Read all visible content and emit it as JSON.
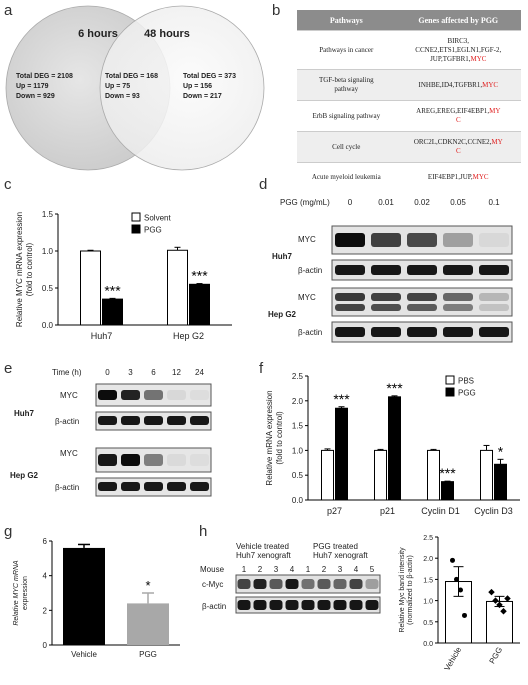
{
  "panel_labels": [
    "a",
    "b",
    "c",
    "d",
    "e",
    "f",
    "g",
    "h"
  ],
  "venn": {
    "left_title": "6 hours",
    "right_title": "48 hours",
    "left_stats": [
      "Total DEG = 2108",
      "Up = 1179",
      "Down = 929"
    ],
    "mid_stats": [
      "Total DEG = 168",
      "Up = 75",
      "Down = 93"
    ],
    "right_stats": [
      "Total DEG = 373",
      "Up = 156",
      "Down = 217"
    ]
  },
  "table": {
    "headers": [
      "Pathways",
      "Genes affected by PGG"
    ],
    "rows": [
      {
        "pathway": "Pathways in cancer",
        "genes_l1": "BIRC3,",
        "genes_l2": "CCNE2,ETS1,EGLN1,FGF-2,",
        "genes_l3": "JUP,TGFBR1,",
        "myc": "MYC"
      },
      {
        "pathway_l1": "TGF-beta signaling",
        "pathway_l2": "pathway",
        "genes": "INHBE,ID4,TGFBR1,",
        "myc": "MYC"
      },
      {
        "pathway": "ErbB signaling pathway",
        "genes": "AREG,EREG,EIF4EBP1,",
        "myc": "MY",
        "myc2": "C"
      },
      {
        "pathway": "Cell cycle",
        "genes": "ORC2L,CDKN2C,CCNE2,",
        "myc": "MY",
        "myc2": "C"
      },
      {
        "pathway": "Acute myeloid leukemia",
        "genes": "EIF4EBP1,JUP,",
        "myc": "MYC"
      }
    ]
  },
  "chart_data": [
    {
      "panel": "c",
      "type": "bar",
      "ylabel": "Relative MYC mRNA expression (fold to control)",
      "ylabel_l1": "Relative MYC mRNA expression",
      "ylabel_l2": "(fold to control)",
      "categories": [
        "Huh7",
        "Hep G2"
      ],
      "series": [
        {
          "name": "Solvent",
          "values": [
            1.0,
            1.01
          ],
          "errors": [
            0.01,
            0.04
          ],
          "color": "#ffffff"
        },
        {
          "name": "PGG",
          "values": [
            0.35,
            0.55
          ],
          "errors": [
            0.01,
            0.01
          ],
          "color": "#000000"
        }
      ],
      "significance": [
        "***",
        "***"
      ],
      "ylim": [
        0.0,
        1.5
      ],
      "yticks": [
        "0.0",
        "0.5",
        "1.0",
        "1.5"
      ],
      "legend": "top-right"
    },
    {
      "panel": "f",
      "type": "bar",
      "ylabel": "Relative mRNA expression (fold to control)",
      "ylabel_l1": "Relative mRNA expression",
      "ylabel_l2": "(fold to control)",
      "categories": [
        "p27",
        "p21",
        "Cyclin D1",
        "Cyclin D3"
      ],
      "series": [
        {
          "name": "PBS",
          "values": [
            1.0,
            1.0,
            1.0,
            1.0
          ],
          "errors": [
            0.03,
            0.02,
            0.02,
            0.1
          ],
          "color": "#ffffff"
        },
        {
          "name": "PGG",
          "values": [
            1.85,
            2.08,
            0.37,
            0.72
          ],
          "errors": [
            0.03,
            0.02,
            0.01,
            0.1
          ],
          "color": "#000000"
        }
      ],
      "significance": [
        "***",
        "***",
        "***",
        "*"
      ],
      "ylim": [
        0.0,
        2.5
      ],
      "yticks": [
        "0.0",
        "0.5",
        "1.0",
        "1.5",
        "2.0",
        "2.5"
      ],
      "legend": "top-right"
    },
    {
      "panel": "g",
      "type": "bar",
      "ylabel": "Relative MYC mRNA expression",
      "ylabel_l1": "Relative MYC mRNA",
      "ylabel_l2": "expression",
      "categories": [
        "Vehicle",
        "PGG"
      ],
      "values": [
        5.6,
        2.4
      ],
      "errors": [
        0.2,
        0.6
      ],
      "colors": [
        "#000000",
        "#a8a8a8"
      ],
      "significance": [
        "",
        "*"
      ],
      "ylim": [
        0,
        6
      ],
      "yticks": [
        "0",
        "2",
        "4",
        "6"
      ]
    },
    {
      "panel": "h",
      "type": "scatter",
      "ylabel": "Relative Myc band intensity (normalized to β-actin)",
      "ylabel_l1": "Relative Myc band intensity",
      "ylabel_l2": "(normalized to β-actin)",
      "categories": [
        "Vehicle",
        "PGG"
      ],
      "means": [
        1.45,
        0.98
      ],
      "errors": [
        0.35,
        0.12
      ],
      "points": [
        [
          1.95,
          1.5,
          1.25,
          0.65
        ],
        [
          1.2,
          1.0,
          0.9,
          0.75,
          1.05
        ]
      ],
      "ylim": [
        0.0,
        2.5
      ],
      "yticks": [
        "0.0",
        "0.5",
        "1.0",
        "1.5",
        "2.0",
        "2.5"
      ]
    }
  ],
  "blot_d": {
    "header_label": "PGG (mg/mL)",
    "doses": [
      "0",
      "0.01",
      "0.02",
      "0.05",
      "0.1"
    ],
    "cell_lines": [
      "Huh7",
      "Hep G2"
    ],
    "rows": [
      "MYC",
      "β-actin"
    ]
  },
  "blot_e": {
    "header_label": "Time (h)",
    "times": [
      "0",
      "3",
      "6",
      "12",
      "24"
    ],
    "cell_lines": [
      "Huh7",
      "Hep G2"
    ],
    "rows": [
      "MYC",
      "β-actin"
    ]
  },
  "blot_h": {
    "group1_l1": "Vehicle treated",
    "group1_l2": "Huh7 xenograft",
    "group2_l1": "PGG treated",
    "group2_l2": "Huh7 xenograft",
    "mouse_label": "Mouse",
    "lanes": [
      "1",
      "2",
      "3",
      "4",
      "1",
      "2",
      "3",
      "4",
      "5"
    ],
    "rows": [
      "c-Myc",
      "β-actin"
    ]
  }
}
